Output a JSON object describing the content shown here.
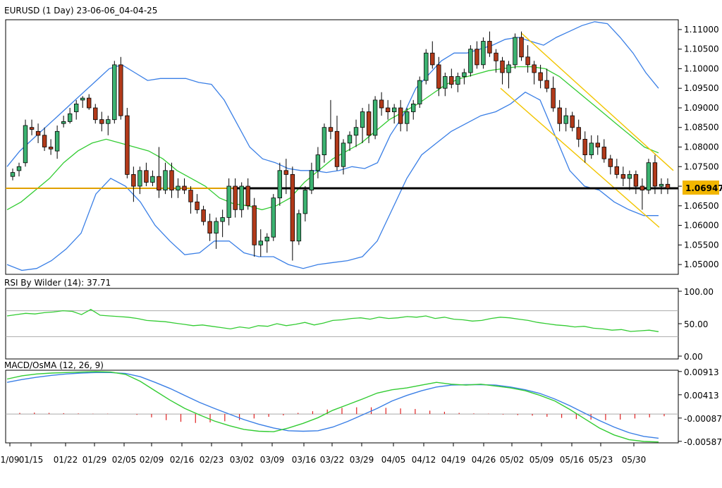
{
  "chart_data": {
    "type": "candlestick",
    "title": "EURUSD (1 Day) 23-06-06_04-04-25",
    "price_axis": {
      "range": [
        1.0475,
        1.1125
      ],
      "ticks": [
        "1.11000",
        "1.10500",
        "1.10000",
        "1.09500",
        "1.09000",
        "1.08500",
        "1.08000",
        "1.07500",
        "1.07000",
        "1.06500",
        "1.06000",
        "1.05500",
        "1.05000"
      ],
      "current_price_label": "1.06947",
      "current_price": 1.06947
    },
    "x_axis": {
      "ticks": [
        "1/09",
        "01/15",
        "01/22",
        "01/29",
        "02/05",
        "02/09",
        "02/16",
        "02/23",
        "03/02",
        "03/09",
        "03/16",
        "03/22",
        "03/29",
        "04/05",
        "04/12",
        "04/19",
        "04/26",
        "05/02",
        "05/09",
        "05/16",
        "05/23",
        "05/30"
      ]
    },
    "horizontal_level": 1.06947,
    "ohlc": [
      [
        1.0725,
        1.0745,
        1.0715,
        1.0735
      ],
      [
        1.074,
        1.076,
        1.0725,
        1.075
      ],
      [
        1.076,
        1.087,
        1.075,
        1.0855
      ],
      [
        1.085,
        1.087,
        1.083,
        1.0845
      ],
      [
        1.084,
        1.086,
        1.081,
        1.083
      ],
      [
        1.083,
        1.085,
        1.079,
        1.08
      ],
      [
        1.08,
        1.082,
        1.078,
        1.0795
      ],
      [
        1.079,
        1.0855,
        1.077,
        1.084
      ],
      [
        1.086,
        1.088,
        1.085,
        1.0865
      ],
      [
        1.0865,
        1.09,
        1.086,
        1.0885
      ],
      [
        1.089,
        1.092,
        1.087,
        1.091
      ],
      [
        1.092,
        1.093,
        1.09,
        1.0925
      ],
      [
        1.0925,
        1.0935,
        1.0895,
        1.09
      ],
      [
        1.09,
        1.091,
        1.086,
        1.087
      ],
      [
        1.087,
        1.089,
        1.084,
        1.086
      ],
      [
        1.086,
        1.088,
        1.083,
        1.087
      ],
      [
        1.087,
        1.102,
        1.086,
        1.101
      ],
      [
        1.101,
        1.103,
        1.087,
        1.088
      ],
      [
        1.088,
        1.09,
        1.072,
        1.073
      ],
      [
        1.073,
        1.075,
        1.066,
        1.07
      ],
      [
        1.07,
        1.075,
        1.068,
        1.074
      ],
      [
        1.074,
        1.076,
        1.07,
        1.071
      ],
      [
        1.071,
        1.074,
        1.07,
        1.0725
      ],
      [
        1.0725,
        1.08,
        1.067,
        1.069
      ],
      [
        1.069,
        1.076,
        1.068,
        1.074
      ],
      [
        1.074,
        1.076,
        1.067,
        1.069
      ],
      [
        1.069,
        1.072,
        1.067,
        1.07
      ],
      [
        1.07,
        1.072,
        1.068,
        1.069
      ],
      [
        1.069,
        1.07,
        1.063,
        1.066
      ],
      [
        1.066,
        1.068,
        1.063,
        1.064
      ],
      [
        1.064,
        1.065,
        1.06,
        1.061
      ],
      [
        1.061,
        1.063,
        1.056,
        1.058
      ],
      [
        1.058,
        1.062,
        1.054,
        1.061
      ],
      [
        1.061,
        1.064,
        1.057,
        1.062
      ],
      [
        1.062,
        1.072,
        1.06,
        1.07
      ],
      [
        1.07,
        1.072,
        1.062,
        1.064
      ],
      [
        1.064,
        1.071,
        1.062,
        1.07
      ],
      [
        1.07,
        1.072,
        1.064,
        1.065
      ],
      [
        1.065,
        1.067,
        1.052,
        1.055
      ],
      [
        1.055,
        1.059,
        1.052,
        1.056
      ],
      [
        1.056,
        1.058,
        1.053,
        1.057
      ],
      [
        1.057,
        1.068,
        1.056,
        1.067
      ],
      [
        1.067,
        1.076,
        1.065,
        1.074
      ],
      [
        1.074,
        1.077,
        1.068,
        1.073
      ],
      [
        1.073,
        1.075,
        1.051,
        1.056
      ],
      [
        1.056,
        1.064,
        1.055,
        1.063
      ],
      [
        1.063,
        1.07,
        1.061,
        1.069
      ],
      [
        1.069,
        1.076,
        1.068,
        1.074
      ],
      [
        1.074,
        1.08,
        1.072,
        1.078
      ],
      [
        1.078,
        1.086,
        1.076,
        1.085
      ],
      [
        1.085,
        1.092,
        1.082,
        1.084
      ],
      [
        1.084,
        1.088,
        1.074,
        1.075
      ],
      [
        1.075,
        1.082,
        1.073,
        1.081
      ],
      [
        1.081,
        1.084,
        1.079,
        1.083
      ],
      [
        1.083,
        1.087,
        1.08,
        1.085
      ],
      [
        1.085,
        1.09,
        1.081,
        1.089
      ],
      [
        1.089,
        1.091,
        1.081,
        1.083
      ],
      [
        1.083,
        1.093,
        1.082,
        1.092
      ],
      [
        1.092,
        1.094,
        1.088,
        1.09
      ],
      [
        1.09,
        1.092,
        1.087,
        1.089
      ],
      [
        1.089,
        1.091,
        1.086,
        1.09
      ],
      [
        1.09,
        1.092,
        1.084,
        1.086
      ],
      [
        1.086,
        1.09,
        1.084,
        1.089
      ],
      [
        1.089,
        1.092,
        1.087,
        1.091
      ],
      [
        1.091,
        1.098,
        1.09,
        1.097
      ],
      [
        1.097,
        1.105,
        1.096,
        1.104
      ],
      [
        1.104,
        1.107,
        1.1,
        1.101
      ],
      [
        1.101,
        1.103,
        1.093,
        1.095
      ],
      [
        1.095,
        1.099,
        1.093,
        1.098
      ],
      [
        1.098,
        1.1,
        1.095,
        1.096
      ],
      [
        1.096,
        1.099,
        1.094,
        1.098
      ],
      [
        1.098,
        1.1,
        1.096,
        1.099
      ],
      [
        1.099,
        1.106,
        1.098,
        1.105
      ],
      [
        1.105,
        1.107,
        1.1,
        1.101
      ],
      [
        1.101,
        1.108,
        1.1,
        1.107
      ],
      [
        1.107,
        1.1095,
        1.103,
        1.104
      ],
      [
        1.104,
        1.105,
        1.099,
        1.102
      ],
      [
        1.102,
        1.103,
        1.096,
        1.099
      ],
      [
        1.099,
        1.102,
        1.095,
        1.101
      ],
      [
        1.101,
        1.109,
        1.1,
        1.108
      ],
      [
        1.108,
        1.1095,
        1.102,
        1.103
      ],
      [
        1.103,
        1.106,
        1.099,
        1.101
      ],
      [
        1.101,
        1.102,
        1.096,
        1.099
      ],
      [
        1.099,
        1.101,
        1.095,
        1.097
      ],
      [
        1.097,
        1.1,
        1.094,
        1.095
      ],
      [
        1.095,
        1.098,
        1.089,
        1.09
      ],
      [
        1.09,
        1.092,
        1.084,
        1.086
      ],
      [
        1.086,
        1.09,
        1.084,
        1.088
      ],
      [
        1.088,
        1.089,
        1.084,
        1.085
      ],
      [
        1.085,
        1.087,
        1.08,
        1.082
      ],
      [
        1.082,
        1.084,
        1.076,
        1.078
      ],
      [
        1.078,
        1.083,
        1.077,
        1.081
      ],
      [
        1.081,
        1.083,
        1.078,
        1.08
      ],
      [
        1.08,
        1.082,
        1.076,
        1.077
      ],
      [
        1.077,
        1.078,
        1.073,
        1.075
      ],
      [
        1.075,
        1.077,
        1.072,
        1.073
      ],
      [
        1.073,
        1.075,
        1.07,
        1.072
      ],
      [
        1.072,
        1.074,
        1.069,
        1.073
      ],
      [
        1.073,
        1.074,
        1.068,
        1.07
      ],
      [
        1.07,
        1.072,
        1.064,
        1.069
      ],
      [
        1.069,
        1.077,
        1.068,
        1.076
      ],
      [
        1.076,
        1.078,
        1.068,
        1.07
      ],
      [
        1.07,
        1.072,
        1.068,
        1.0705
      ],
      [
        1.0705,
        1.072,
        1.068,
        1.0695
      ]
    ],
    "overlays": [
      {
        "name": "Bollinger upper",
        "color": "#3a7fe6",
        "values": [
          1.075,
          1.079,
          1.082,
          1.085,
          1.088,
          1.091,
          1.094,
          1.097,
          1.1,
          1.101,
          1.099,
          1.097,
          1.0975,
          1.0975,
          1.0975,
          1.0965,
          1.096,
          1.092,
          1.086,
          1.08,
          1.077,
          1.076,
          1.0745,
          1.074,
          1.074,
          1.0735,
          1.074,
          1.075,
          1.0745,
          1.076,
          1.083,
          1.088,
          1.095,
          1.0985,
          1.102,
          1.104,
          1.104,
          1.105,
          1.106,
          1.1075,
          1.108,
          1.107,
          1.106,
          1.108,
          1.1095,
          1.111,
          1.112,
          1.1115,
          1.108,
          1.104,
          1.099,
          1.095
        ]
      },
      {
        "name": "Bollinger middle",
        "color": "#33cc33",
        "values": [
          1.064,
          1.066,
          1.069,
          1.072,
          1.076,
          1.079,
          1.081,
          1.082,
          1.081,
          1.08,
          1.079,
          1.077,
          1.074,
          1.072,
          1.07,
          1.067,
          1.0655,
          1.065,
          1.064,
          1.065,
          1.067,
          1.071,
          1.074,
          1.077,
          1.079,
          1.081,
          1.084,
          1.087,
          1.089,
          1.091,
          1.0935,
          1.096,
          1.0975,
          1.0985,
          1.0995,
          1.1,
          1.1005,
          1.1005,
          1.1,
          1.098,
          1.095,
          1.092,
          1.089,
          1.086,
          1.083,
          1.08,
          1.0785
        ]
      },
      {
        "name": "Bollinger lower",
        "color": "#3a7fe6",
        "values": [
          1.05,
          1.0485,
          1.049,
          1.051,
          1.054,
          1.058,
          1.068,
          1.072,
          1.07,
          1.066,
          1.06,
          1.056,
          1.0525,
          1.053,
          1.056,
          1.056,
          1.053,
          1.052,
          1.052,
          1.05,
          1.049,
          1.05,
          1.0505,
          1.051,
          1.052,
          1.056,
          1.064,
          1.072,
          1.078,
          1.081,
          1.084,
          1.086,
          1.088,
          1.089,
          1.091,
          1.094,
          1.092,
          1.083,
          1.074,
          1.07,
          1.069,
          1.066,
          1.064,
          1.0625,
          1.0625
        ]
      }
    ],
    "channel": {
      "color": "#f2c500",
      "upper": [
        [
          1.109,
          1.074
        ]
      ],
      "lower": [
        [
          1.095,
          1.0595
        ]
      ]
    },
    "rsi": {
      "title": "RSI By Wilder (14): 37.71",
      "axis_ticks": [
        "100.00",
        "50.00",
        "0.00"
      ],
      "levels": [
        70,
        30
      ],
      "values": [
        62,
        64,
        66,
        65,
        67,
        68,
        70,
        69,
        64,
        72,
        63,
        62,
        61,
        60,
        58,
        55,
        54,
        53,
        51,
        49,
        47,
        48,
        46,
        44,
        42,
        45,
        43,
        47,
        46,
        50,
        47,
        49,
        52,
        48,
        51,
        55,
        56,
        58,
        59,
        57,
        60,
        58,
        59,
        61,
        60,
        62,
        58,
        60,
        57,
        56,
        54,
        55,
        58,
        60,
        59,
        57,
        55,
        52,
        50,
        48,
        47,
        45,
        46,
        43,
        42,
        40,
        41,
        38,
        39,
        40,
        37.71
      ]
    },
    "macd": {
      "title": "MACD/OsMA (12, 26, 9)",
      "axis_ticks": [
        "0.00913",
        "0.00413",
        "-0.00087",
        "-0.00587"
      ],
      "range": [
        -0.0062,
        0.0094
      ],
      "macd_line": [
        0.0075,
        0.0082,
        0.0086,
        0.0088,
        0.0089,
        0.009,
        0.0091,
        0.009,
        0.0085,
        0.007,
        0.005,
        0.003,
        0.0012,
        -0.0002,
        -0.0015,
        -0.0025,
        -0.0033,
        -0.0037,
        -0.0038,
        -0.003,
        -0.002,
        -0.0008,
        0.0008,
        0.002,
        0.0032,
        0.0045,
        0.0052,
        0.0056,
        0.0062,
        0.0068,
        0.0064,
        0.0062,
        0.0064,
        0.006,
        0.0056,
        0.005,
        0.004,
        0.0028,
        0.001,
        -0.001,
        -0.003,
        -0.0045,
        -0.0055,
        -0.0059,
        -0.006
      ],
      "signal_line": [
        0.0068,
        0.0074,
        0.0079,
        0.0083,
        0.0086,
        0.0088,
        0.0089,
        0.0089,
        0.0087,
        0.008,
        0.0068,
        0.0055,
        0.004,
        0.0025,
        0.0012,
        0.0,
        -0.0012,
        -0.0022,
        -0.003,
        -0.0036,
        -0.0037,
        -0.0036,
        -0.0028,
        -0.0016,
        -0.0002,
        0.0012,
        0.0028,
        0.004,
        0.005,
        0.0058,
        0.0062,
        0.0063,
        0.0063,
        0.0062,
        0.0058,
        0.0052,
        0.0044,
        0.0032,
        0.0018,
        0.0002,
        -0.0014,
        -0.0028,
        -0.004,
        -0.0048,
        -0.0052
      ],
      "osma": [
        0.0004,
        0.0005,
        0.0004,
        0.0003,
        0.0002,
        0.0001,
        0.0001,
        0.0,
        -0.0003,
        -0.0012,
        -0.0022,
        -0.0028,
        -0.0032,
        -0.003,
        -0.0026,
        -0.0022,
        -0.0016,
        -0.001,
        -0.0005,
        0.0004,
        0.001,
        0.0016,
        0.0022,
        0.0024,
        0.0024,
        0.0022,
        0.002,
        0.0018,
        0.0012,
        0.0008,
        0.0004,
        0.0002,
        0.0001,
        -0.0002,
        -0.0004,
        -0.0006,
        -0.001,
        -0.0014,
        -0.0018,
        -0.002,
        -0.0022,
        -0.002,
        -0.0016,
        -0.0012,
        -0.0008
      ]
    }
  }
}
